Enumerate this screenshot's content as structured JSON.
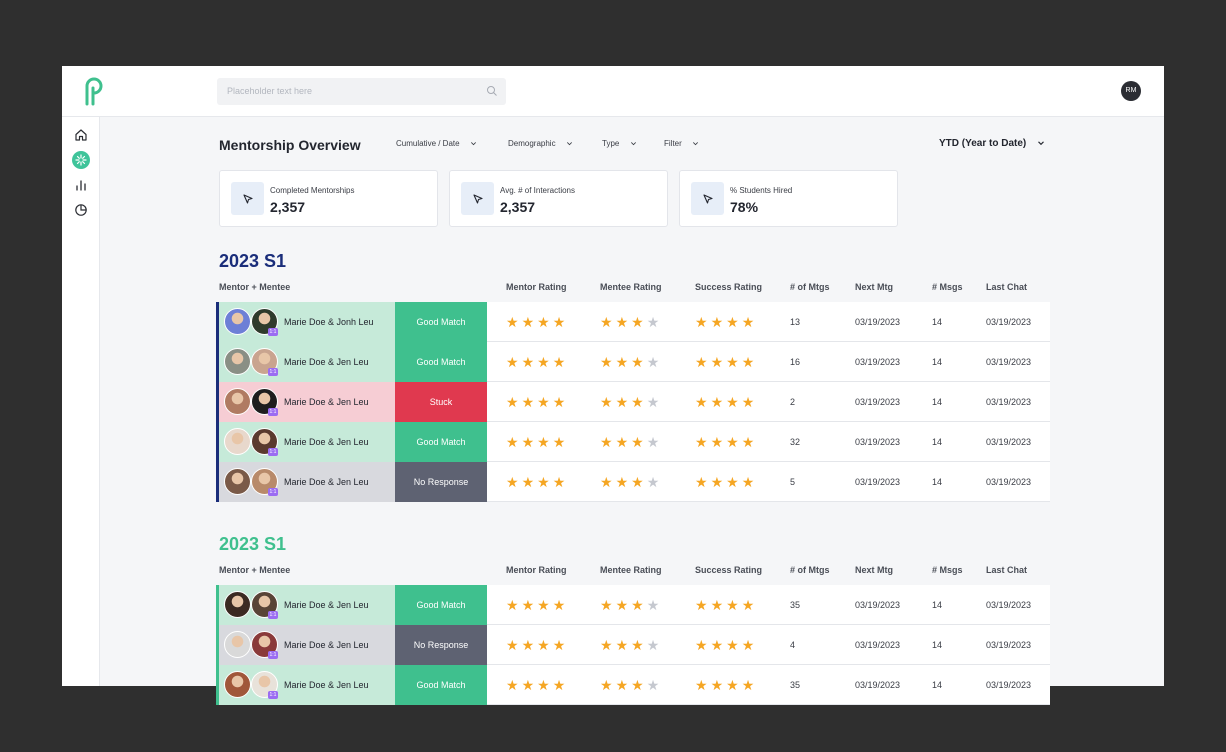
{
  "search": {
    "placeholder": "Placeholder text here"
  },
  "user": {
    "initials": "RM"
  },
  "sidebar": {
    "items": [
      {
        "name": "home-icon",
        "active": false
      },
      {
        "name": "mentorship-icon",
        "active": true
      },
      {
        "name": "bar-chart-icon",
        "active": false
      },
      {
        "name": "pie-chart-icon",
        "active": false
      }
    ]
  },
  "header": {
    "title": "Mentorship Overview",
    "filters": [
      "Cumulative / Date",
      "Demographic",
      "Type",
      "Filter"
    ],
    "range": "YTD (Year to Date)"
  },
  "stats": [
    {
      "label": "Completed Mentorships",
      "value": "2,357"
    },
    {
      "label": "Avg. # of Interactions",
      "value": "2,357"
    },
    {
      "label": "% Students Hired",
      "value": "78%"
    }
  ],
  "columns": {
    "pair": "Mentor + Mentee",
    "mentor_rating": "Mentor Rating",
    "mentee_rating": "Mentee Rating",
    "success_rating": "Success Rating",
    "mtgs": "# of Mtgs",
    "next_mtg": "Next Mtg",
    "msgs": "# Msgs",
    "last_chat": "Last Chat"
  },
  "badge_label": "1:1",
  "colors": {
    "good": "#3fc08e",
    "good_bg": "#c6ead9",
    "stuck": "#e0394f",
    "stuck_bg": "#f6cdd4",
    "none": "#5e6272",
    "none_bg": "#d8d9de",
    "navy": "#1a2d7a",
    "teal": "#3fc08e"
  },
  "sections": [
    {
      "title": "2023 S1",
      "title_color": "#1a2d7a",
      "rows": [
        {
          "pair": "Marie Doe & Jonh Leu",
          "status": "Good Match",
          "kind": "good",
          "mentor": 4,
          "mentee": 3,
          "success": 4,
          "mtgs": "13",
          "next": "03/19/2023",
          "msgs": "14",
          "last": "03/19/2023"
        },
        {
          "pair": "Marie Doe & Jen Leu",
          "status": "Good Match",
          "kind": "good",
          "mentor": 4,
          "mentee": 3,
          "success": 4,
          "mtgs": "16",
          "next": "03/19/2023",
          "msgs": "14",
          "last": "03/19/2023"
        },
        {
          "pair": "Marie Doe & Jen Leu",
          "status": "Stuck",
          "kind": "stuck",
          "mentor": 4,
          "mentee": 3,
          "success": 4,
          "mtgs": "2",
          "next": "03/19/2023",
          "msgs": "14",
          "last": "03/19/2023"
        },
        {
          "pair": "Marie Doe & Jen Leu",
          "status": "Good Match",
          "kind": "good",
          "mentor": 4,
          "mentee": 3,
          "success": 4,
          "mtgs": "32",
          "next": "03/19/2023",
          "msgs": "14",
          "last": "03/19/2023"
        },
        {
          "pair": "Marie Doe & Jen Leu",
          "status": "No Response",
          "kind": "none",
          "mentor": 4,
          "mentee": 3,
          "success": 4,
          "mtgs": "5",
          "next": "03/19/2023",
          "msgs": "14",
          "last": "03/19/2023"
        }
      ]
    },
    {
      "title": "2023 S1",
      "title_color": "#3fc08e",
      "rows": [
        {
          "pair": "Marie Doe & Jen Leu",
          "status": "Good Match",
          "kind": "good",
          "mentor": 4,
          "mentee": 3,
          "success": 4,
          "mtgs": "35",
          "next": "03/19/2023",
          "msgs": "14",
          "last": "03/19/2023"
        },
        {
          "pair": "Marie Doe & Jen Leu",
          "status": "No Response",
          "kind": "none",
          "mentor": 4,
          "mentee": 3,
          "success": 4,
          "mtgs": "4",
          "next": "03/19/2023",
          "msgs": "14",
          "last": "03/19/2023"
        },
        {
          "pair": "Marie Doe & Jen Leu",
          "status": "Good Match",
          "kind": "good",
          "mentor": 4,
          "mentee": 3,
          "success": 4,
          "mtgs": "35",
          "next": "03/19/2023",
          "msgs": "14",
          "last": "03/19/2023"
        }
      ]
    }
  ]
}
